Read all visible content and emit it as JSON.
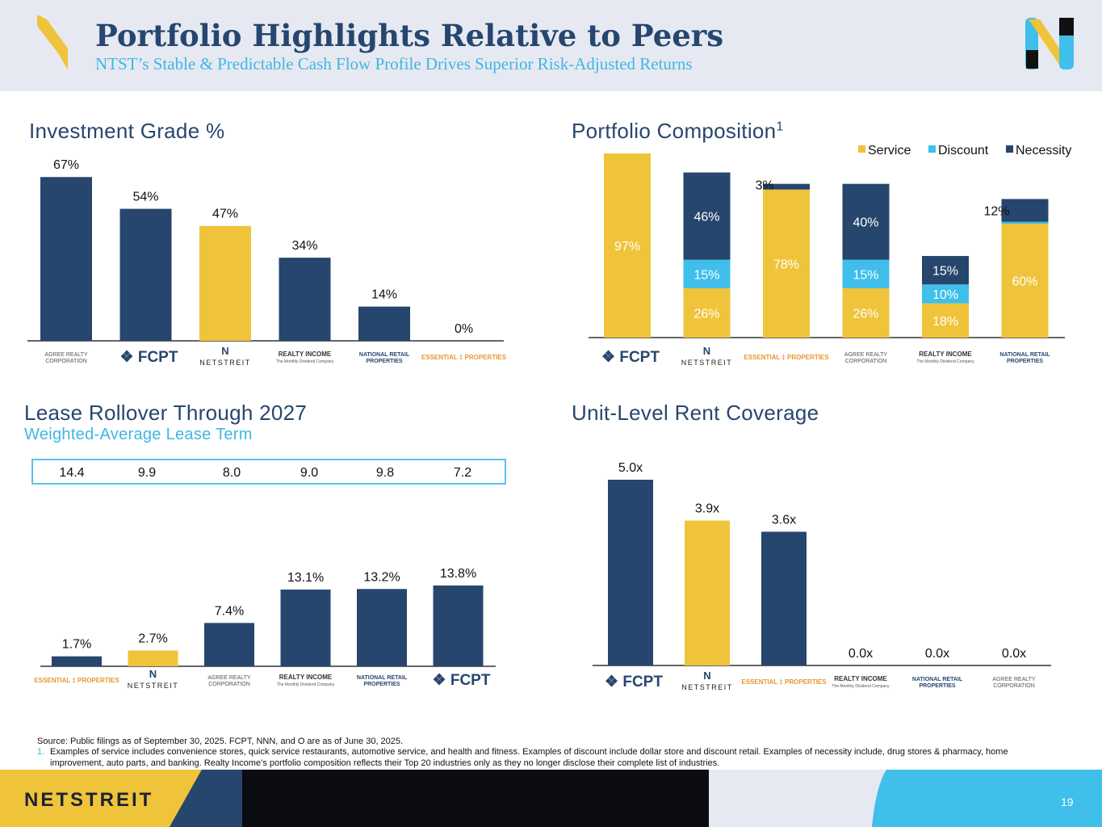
{
  "header": {
    "title": "Portfolio Highlights Relative to Peers",
    "subtitle": "NTST’s Stable & Predictable Cash Flow Profile Drives Superior Risk-Adjusted Returns"
  },
  "colors": {
    "navy": "#27466d",
    "gold": "#efc43b",
    "cyan": "#3fbfea",
    "header_bg": "#e6e9f1"
  },
  "logo_names": {
    "adc": "AGREE REALTY CORPORATION",
    "fcpt": "FCPT",
    "ntst": "NETSTREIT",
    "o": "REALTY INCOME",
    "o_tag": "The Monthly Dividend Company",
    "nnn": "NATIONAL RETAIL PROPERTIES",
    "epr": "ESSENTIAL PROPERTIES"
  },
  "investment_grade": {
    "title": "Investment Grade %"
  },
  "portfolio_composition": {
    "title": "Portfolio Composition",
    "superscript": "1"
  },
  "lease_rollover": {
    "title": "Lease Rollover Through 2027",
    "subtitle": "Weighted-Average Lease Term",
    "wale": [
      "14.4",
      "9.9",
      "8.0",
      "9.0",
      "9.8",
      "7.2"
    ]
  },
  "rent_coverage": {
    "title": "Unit-Level Rent Coverage"
  },
  "footnotes": {
    "source": "Source: Public filings as of September 30, 2025. FCPT, NNN, and O are as of June 30, 2025.",
    "note_number": "1.",
    "note_line1": "Examples of service includes convenience stores, quick service restaurants, automotive service, and health and fitness. Examples of discount include dollar store and discount retail. Examples of necessity include, drug stores & pharmacy, home",
    "note_line2": "improvement, auto parts, and banking. Realty Income’s portfolio composition reflects their Top 20 industries only as they no longer disclose their complete list of industries."
  },
  "footer": {
    "brand": "NETSTREIT",
    "page": "19"
  },
  "chart_data": [
    {
      "type": "bar",
      "title": "Investment Grade %",
      "categories": [
        "ADC",
        "FCPT",
        "NTST",
        "O",
        "NNN",
        "EPRT"
      ],
      "values": [
        67,
        54,
        47,
        34,
        14,
        0
      ],
      "labels": [
        "67%",
        "54%",
        "47%",
        "34%",
        "14%",
        "0%"
      ],
      "highlight": [
        false,
        false,
        true,
        false,
        false,
        false
      ],
      "ylim": [
        0,
        75
      ],
      "grid": false
    },
    {
      "type": "bar",
      "stacked": true,
      "title": "Portfolio Composition",
      "categories": [
        "FCPT",
        "NTST",
        "EPRT",
        "ADC",
        "O",
        "NNN"
      ],
      "legend_position": "top-right",
      "series": [
        {
          "name": "Service",
          "color": "#efc43b",
          "values": [
            97,
            26,
            78,
            26,
            18,
            60
          ],
          "labels": [
            "97%",
            "26%",
            "78%",
            "26%",
            "18%",
            "60%"
          ]
        },
        {
          "name": "Discount",
          "color": "#3fbfea",
          "values": [
            0,
            15,
            0,
            15,
            10,
            1
          ],
          "labels": [
            "",
            "15%",
            "",
            "15%",
            "10%",
            ""
          ]
        },
        {
          "name": "Necessity",
          "color": "#27466d",
          "values": [
            0,
            46,
            3,
            40,
            15,
            12
          ],
          "labels": [
            "",
            "46%",
            "3%",
            "40%",
            "15%",
            "12%"
          ]
        }
      ],
      "ylim": [
        0,
        100
      ],
      "grid": false
    },
    {
      "type": "bar",
      "title": "Lease Rollover Through 2027",
      "categories": [
        "EPRT",
        "NTST",
        "ADC",
        "O",
        "NNN",
        "FCPT"
      ],
      "values": [
        1.7,
        2.7,
        7.4,
        13.1,
        13.2,
        13.8
      ],
      "labels": [
        "1.7%",
        "2.7%",
        "7.4%",
        "13.1%",
        "13.2%",
        "13.8%"
      ],
      "highlight": [
        false,
        true,
        false,
        false,
        false,
        false
      ],
      "ylim": [
        0,
        20
      ],
      "grid": false
    },
    {
      "type": "bar",
      "title": "Unit-Level Rent Coverage",
      "categories": [
        "FCPT",
        "NTST",
        "EPRT",
        "O",
        "NNN",
        "ADC"
      ],
      "values": [
        5.0,
        3.9,
        3.6,
        0.0,
        0.0,
        0.0
      ],
      "labels": [
        "5.0x",
        "3.9x",
        "3.6x",
        "0.0x",
        "0.0x",
        "0.0x"
      ],
      "highlight": [
        false,
        true,
        false,
        false,
        false,
        false
      ],
      "ylim": [
        0,
        5.5
      ],
      "grid": false
    }
  ]
}
